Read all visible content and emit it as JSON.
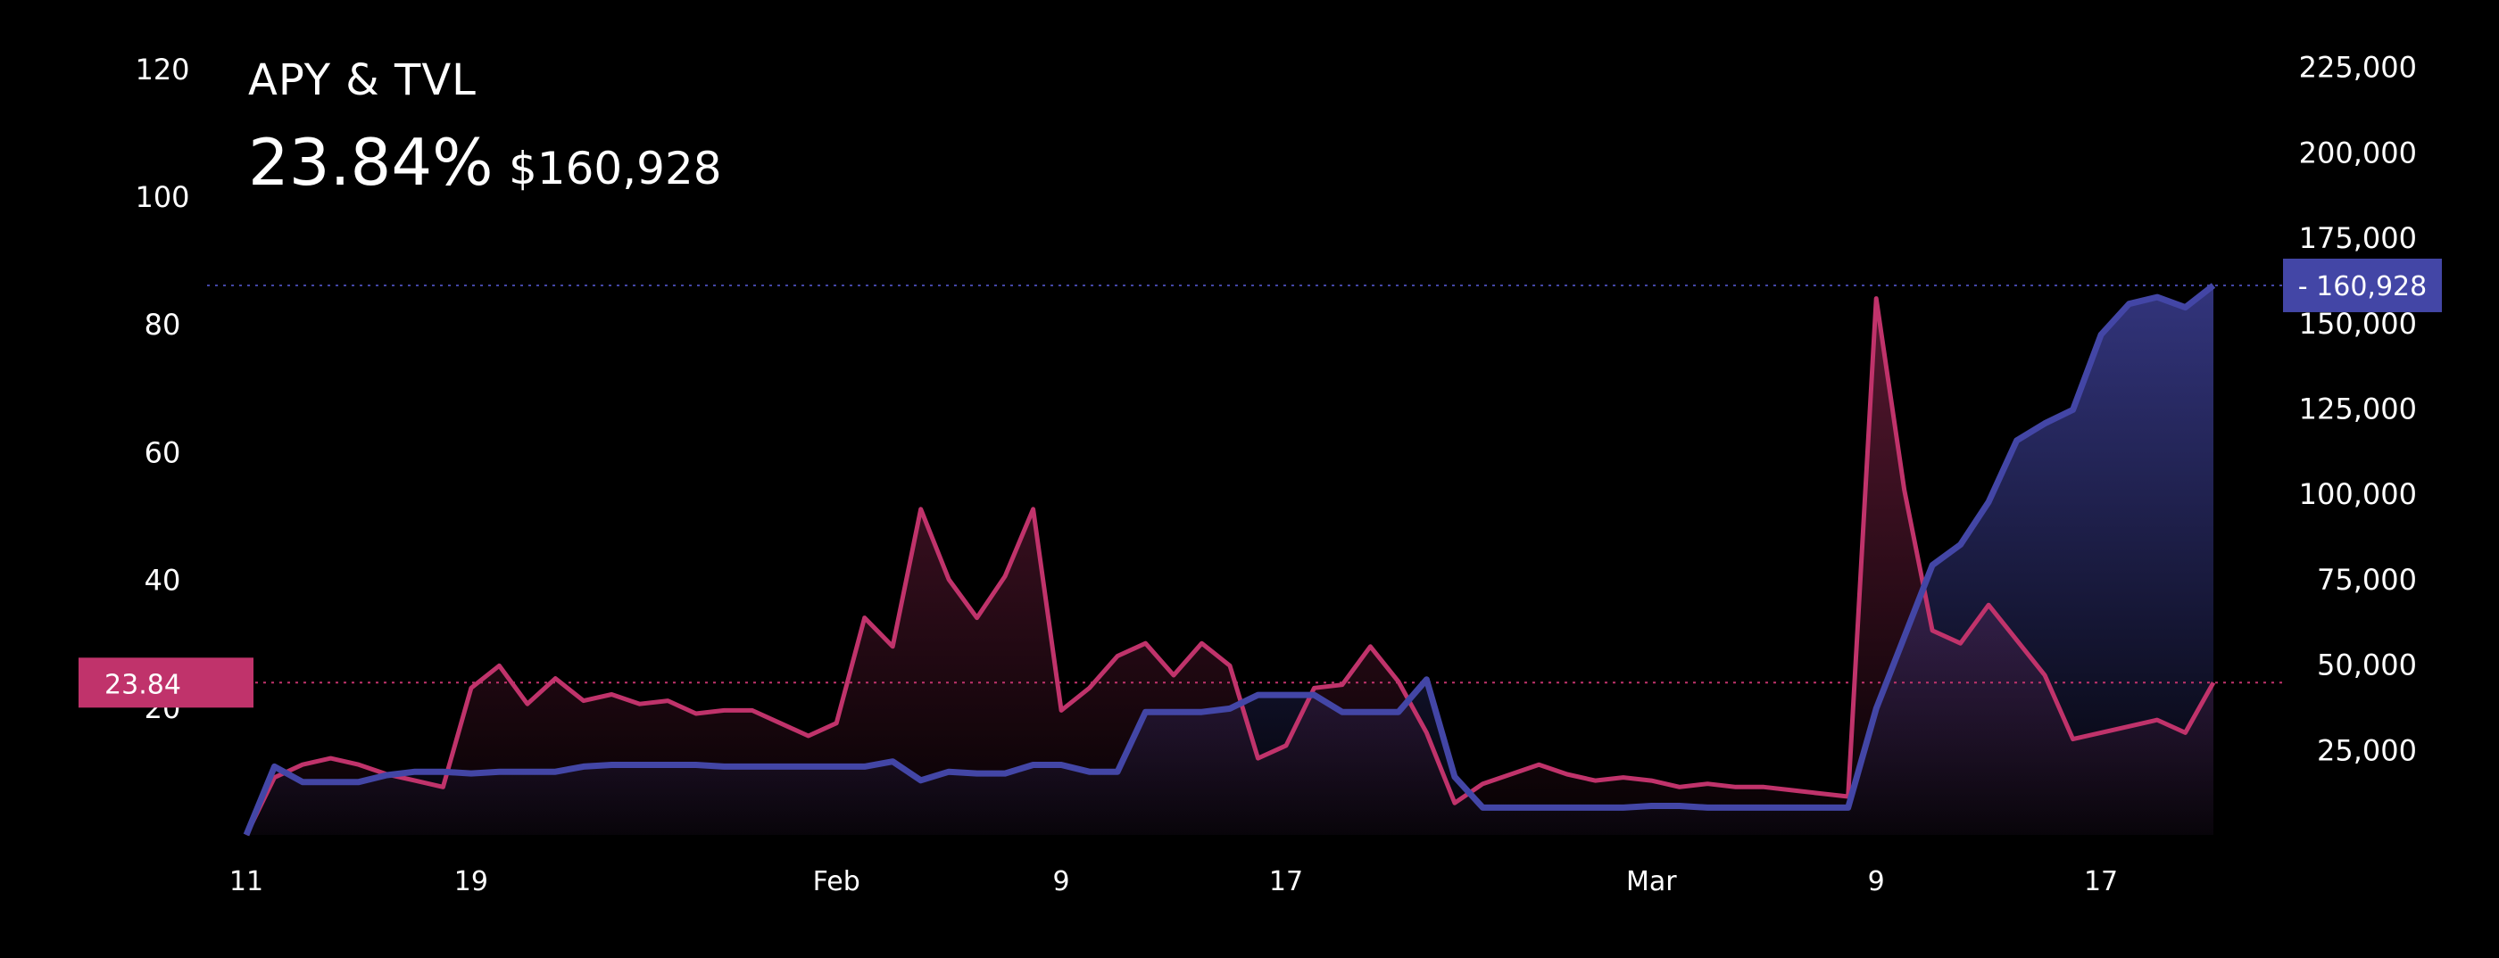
{
  "header": {
    "title": "APY & TVL",
    "apy_display": "23.84%",
    "tvl_display": "$160,928"
  },
  "colors": {
    "apy": "#c0336b",
    "tvl": "#4346a6",
    "background": "#000000"
  },
  "chart_data": {
    "type": "line",
    "x_tick_labels": [
      "11",
      "19",
      "Feb",
      "9",
      "17",
      "Mar",
      "9",
      "17"
    ],
    "x_tick_dates": [
      "2024-01-11",
      "2024-01-19",
      "2024-02-01",
      "2024-02-09",
      "2024-02-17",
      "2024-03-01",
      "2024-03-09",
      "2024-03-17"
    ],
    "x_range": [
      "2024-01-11",
      "2024-03-21"
    ],
    "y_left": {
      "ticks": [
        20,
        40,
        60,
        80,
        100,
        120
      ],
      "range": [
        0,
        120
      ]
    },
    "y_right": {
      "ticks": [
        "25,000",
        "50,000",
        "75,000",
        "100,000",
        "125,000",
        "150,000",
        "175,000",
        "200,000",
        "225,000"
      ],
      "range": [
        0,
        230000
      ]
    },
    "current_markers": {
      "apy": "23.84",
      "tvl": "160,928"
    },
    "series": [
      {
        "key": "apy",
        "axis": "left",
        "points": [
          [
            "2024-01-11",
            0
          ],
          [
            "2024-01-12",
            9
          ],
          [
            "2024-01-13",
            11
          ],
          [
            "2024-01-14",
            12
          ],
          [
            "2024-01-15",
            11
          ],
          [
            "2024-01-16",
            9.5
          ],
          [
            "2024-01-17",
            8.5
          ],
          [
            "2024-01-18",
            7.5
          ],
          [
            "2024-01-19",
            23
          ],
          [
            "2024-01-20",
            26.5
          ],
          [
            "2024-01-21",
            20.5
          ],
          [
            "2024-01-22",
            24.5
          ],
          [
            "2024-01-23",
            21
          ],
          [
            "2024-01-24",
            22
          ],
          [
            "2024-01-25",
            20.5
          ],
          [
            "2024-01-26",
            21
          ],
          [
            "2024-01-27",
            19
          ],
          [
            "2024-01-28",
            19.5
          ],
          [
            "2024-01-29",
            19.5
          ],
          [
            "2024-01-30",
            17.5
          ],
          [
            "2024-01-31",
            15.5
          ],
          [
            "2024-02-01",
            17.5
          ],
          [
            "2024-02-02",
            34
          ],
          [
            "2024-02-03",
            29.5
          ],
          [
            "2024-02-04",
            51
          ],
          [
            "2024-02-05",
            40
          ],
          [
            "2024-02-06",
            34
          ],
          [
            "2024-02-07",
            40.5
          ],
          [
            "2024-02-08",
            51
          ],
          [
            "2024-02-09",
            19.5
          ],
          [
            "2024-02-10",
            23
          ],
          [
            "2024-02-11",
            28
          ],
          [
            "2024-02-12",
            30
          ],
          [
            "2024-02-13",
            25
          ],
          [
            "2024-02-14",
            30
          ],
          [
            "2024-02-15",
            26.5
          ],
          [
            "2024-02-16",
            12
          ],
          [
            "2024-02-17",
            14
          ],
          [
            "2024-02-18",
            23
          ],
          [
            "2024-02-19",
            23.5
          ],
          [
            "2024-02-20",
            29.5
          ],
          [
            "2024-02-21",
            24
          ],
          [
            "2024-02-22",
            16
          ],
          [
            "2024-02-23",
            5
          ],
          [
            "2024-02-24",
            8
          ],
          [
            "2024-02-25",
            9.5
          ],
          [
            "2024-02-26",
            11
          ],
          [
            "2024-02-27",
            9.5
          ],
          [
            "2024-02-28",
            8.5
          ],
          [
            "2024-02-29",
            9
          ],
          [
            "2024-03-01",
            8.5
          ],
          [
            "2024-03-02",
            7.5
          ],
          [
            "2024-03-03",
            8
          ],
          [
            "2024-03-04",
            7.5
          ],
          [
            "2024-03-05",
            7.5
          ],
          [
            "2024-03-06",
            7
          ],
          [
            "2024-03-07",
            6.5
          ],
          [
            "2024-03-08",
            6
          ],
          [
            "2024-03-09",
            84
          ],
          [
            "2024-03-10",
            54
          ],
          [
            "2024-03-11",
            32
          ],
          [
            "2024-03-12",
            30
          ],
          [
            "2024-03-13",
            36
          ],
          [
            "2024-03-14",
            30.5
          ],
          [
            "2024-03-15",
            25
          ],
          [
            "2024-03-16",
            15
          ],
          [
            "2024-03-17",
            16
          ],
          [
            "2024-03-18",
            17
          ],
          [
            "2024-03-19",
            18
          ],
          [
            "2024-03-20",
            16
          ],
          [
            "2024-03-21",
            23.84
          ]
        ]
      },
      {
        "key": "tvl",
        "axis": "right",
        "points": [
          [
            "2024-01-11",
            0
          ],
          [
            "2024-01-12",
            20000
          ],
          [
            "2024-01-13",
            15500
          ],
          [
            "2024-01-14",
            15500
          ],
          [
            "2024-01-15",
            15500
          ],
          [
            "2024-01-16",
            17500
          ],
          [
            "2024-01-17",
            18500
          ],
          [
            "2024-01-18",
            18500
          ],
          [
            "2024-01-19",
            18000
          ],
          [
            "2024-01-20",
            18500
          ],
          [
            "2024-01-21",
            18500
          ],
          [
            "2024-01-22",
            18500
          ],
          [
            "2024-01-23",
            20000
          ],
          [
            "2024-01-24",
            20500
          ],
          [
            "2024-01-25",
            20500
          ],
          [
            "2024-01-26",
            20500
          ],
          [
            "2024-01-27",
            20500
          ],
          [
            "2024-01-28",
            20000
          ],
          [
            "2024-01-29",
            20000
          ],
          [
            "2024-01-30",
            20000
          ],
          [
            "2024-01-31",
            20000
          ],
          [
            "2024-02-01",
            20000
          ],
          [
            "2024-02-02",
            20000
          ],
          [
            "2024-02-03",
            21500
          ],
          [
            "2024-02-04",
            16000
          ],
          [
            "2024-02-05",
            18500
          ],
          [
            "2024-02-06",
            18000
          ],
          [
            "2024-02-07",
            18000
          ],
          [
            "2024-02-08",
            20500
          ],
          [
            "2024-02-09",
            20500
          ],
          [
            "2024-02-10",
            18500
          ],
          [
            "2024-02-11",
            18500
          ],
          [
            "2024-02-12",
            36000
          ],
          [
            "2024-02-13",
            36000
          ],
          [
            "2024-02-14",
            36000
          ],
          [
            "2024-02-15",
            37000
          ],
          [
            "2024-02-16",
            41000
          ],
          [
            "2024-02-17",
            41000
          ],
          [
            "2024-02-18",
            41000
          ],
          [
            "2024-02-19",
            36000
          ],
          [
            "2024-02-20",
            36000
          ],
          [
            "2024-02-21",
            36000
          ],
          [
            "2024-02-22",
            45500
          ],
          [
            "2024-02-23",
            17000
          ],
          [
            "2024-02-24",
            8000
          ],
          [
            "2024-02-25",
            8000
          ],
          [
            "2024-02-26",
            8000
          ],
          [
            "2024-02-27",
            8000
          ],
          [
            "2024-02-28",
            8000
          ],
          [
            "2024-02-29",
            8000
          ],
          [
            "2024-03-01",
            8500
          ],
          [
            "2024-03-02",
            8500
          ],
          [
            "2024-03-03",
            8000
          ],
          [
            "2024-03-04",
            8000
          ],
          [
            "2024-03-05",
            8000
          ],
          [
            "2024-03-06",
            8000
          ],
          [
            "2024-03-07",
            8000
          ],
          [
            "2024-03-08",
            8000
          ],
          [
            "2024-03-09",
            37000
          ],
          [
            "2024-03-10",
            58000
          ],
          [
            "2024-03-11",
            79000
          ],
          [
            "2024-03-12",
            85000
          ],
          [
            "2024-03-13",
            97500
          ],
          [
            "2024-03-14",
            115500
          ],
          [
            "2024-03-15",
            120500
          ],
          [
            "2024-03-16",
            124500
          ],
          [
            "2024-03-17",
            146500
          ],
          [
            "2024-03-18",
            155500
          ],
          [
            "2024-03-19",
            157500
          ],
          [
            "2024-03-20",
            154500
          ],
          [
            "2024-03-21",
            160928
          ]
        ]
      }
    ]
  }
}
